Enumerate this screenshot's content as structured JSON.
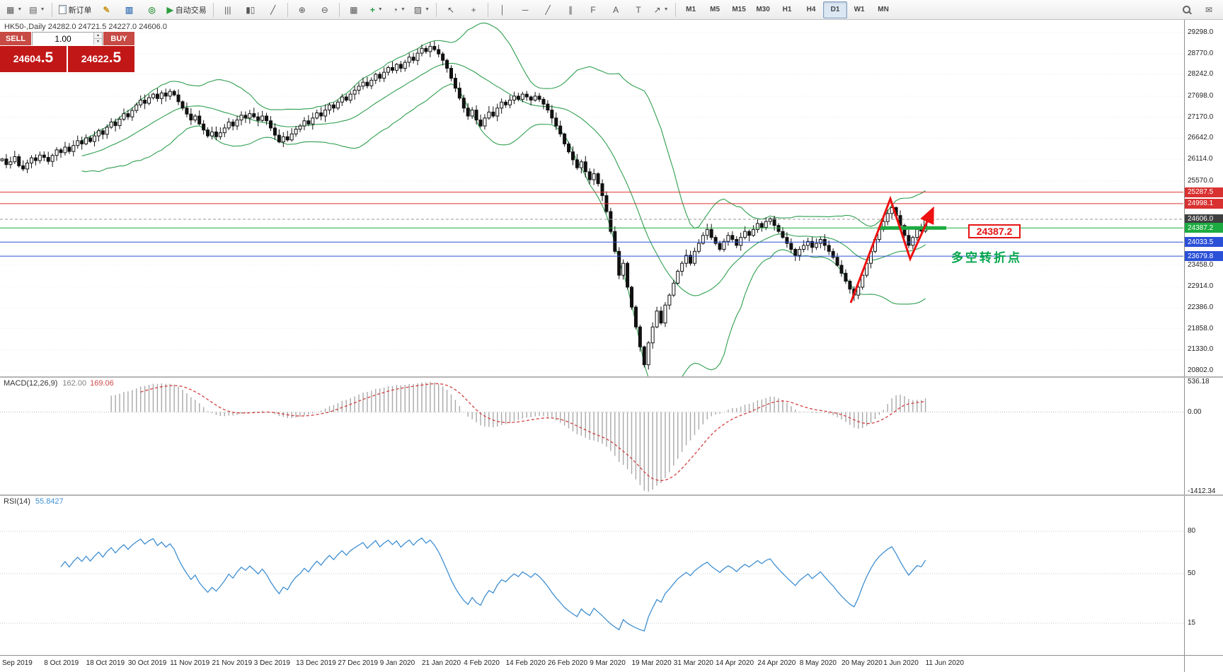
{
  "toolbar": {
    "groups": [
      {
        "items": [
          {
            "name": "new-chart-button",
            "glyph": "▦",
            "caret": true
          },
          {
            "name": "profiles-button",
            "glyph": "▤",
            "caret": true
          }
        ]
      },
      {
        "items": [
          {
            "name": "new-order-button",
            "type": "page",
            "label": "新订单"
          },
          {
            "name": "metaeditor-button",
            "glyph": "✎",
            "color": "#c8961e"
          },
          {
            "name": "terminal-button",
            "glyph": "▥",
            "color": "#4a7ebb"
          },
          {
            "name": "navigator-button",
            "glyph": "◎",
            "color": "#3f9d4c"
          },
          {
            "name": "autotrading-button",
            "glyph": "▶",
            "color": "#2e9e3e",
            "label": "自动交易"
          }
        ]
      },
      {
        "items": [
          {
            "name": "bar-chart-button",
            "glyph": "|||"
          },
          {
            "name": "candlestick-chart-button",
            "glyph": "▮▯"
          },
          {
            "name": "line-chart-button",
            "glyph": "╱"
          }
        ]
      },
      {
        "items": [
          {
            "name": "zoom-in-button",
            "glyph": "⊕"
          },
          {
            "name": "zoom-out-button",
            "glyph": "⊖"
          }
        ]
      },
      {
        "items": [
          {
            "name": "tile-windows-button",
            "glyph": "▦"
          },
          {
            "name": "indicators-button",
            "glyph": "+",
            "color": "#1f9d3f",
            "caret": true
          },
          {
            "name": "periods-button",
            "glyph": "◔",
            "caret": true
          },
          {
            "name": "templates-button",
            "glyph": "▨",
            "caret": true
          }
        ]
      },
      {
        "items": [
          {
            "name": "cursor-button",
            "glyph": "↖"
          },
          {
            "name": "crosshair-button",
            "glyph": "+"
          }
        ]
      },
      {
        "items": [
          {
            "name": "vertical-line-button",
            "glyph": "│"
          },
          {
            "name": "horizontal-line-button",
            "glyph": "─"
          },
          {
            "name": "trendline-button",
            "glyph": "╱"
          },
          {
            "name": "channel-button",
            "glyph": "∥"
          },
          {
            "name": "fibonacci-button",
            "glyph": "F"
          },
          {
            "name": "text-button",
            "glyph": "A"
          },
          {
            "name": "text-label-button",
            "glyph": "T"
          },
          {
            "name": "arrow-objects-button",
            "glyph": "↗",
            "caret": true
          }
        ]
      }
    ],
    "timeframes": [
      "M1",
      "M5",
      "M15",
      "M30",
      "H1",
      "H4",
      "D1",
      "W1",
      "MN"
    ],
    "active_timeframe": "D1",
    "right_icons": [
      {
        "name": "search-button",
        "type": "mag"
      },
      {
        "name": "chat-button",
        "glyph": "✉"
      }
    ]
  },
  "trade_panel": {
    "sell_label": "SELL",
    "buy_label": "BUY",
    "volume": "1.00",
    "sell_price_main": "24604",
    "sell_price_frac": ".5",
    "buy_price_main": "24622",
    "buy_price_frac": ".5"
  },
  "chart": {
    "info_line": "HK50-,Daily  24282.0 24721.5 24227.0 24606.0",
    "symbol": "HK50-",
    "period": "Daily",
    "annotation_price": "24387.2",
    "annotation_text": "多空转折点",
    "price_axis_labels": [
      "29298.0",
      "28770.0",
      "28242.0",
      "27698.0",
      "27170.0",
      "26642.0",
      "26114.0",
      "25570.0",
      "23458.0",
      "22914.0",
      "22386.0",
      "21858.0",
      "21330.0",
      "20802.0"
    ],
    "levels": [
      {
        "label": "25287.5",
        "kind": "resistance",
        "box": "#d93030",
        "line": "#e03232",
        "dash": false
      },
      {
        "label": "24998.1",
        "kind": "resistance",
        "box": "#d93030",
        "line": "#e03232",
        "dash": false
      },
      {
        "label": "24606.0",
        "kind": "current-price",
        "box": "#3f3f3f",
        "line": "#9a9a9a",
        "dash": true
      },
      {
        "label": "24387.2",
        "kind": "pivot",
        "box": "#1cab40",
        "line": "#1cab40",
        "dash": false
      },
      {
        "label": "24033.5",
        "kind": "support",
        "box": "#2b50d8",
        "line": "#2b50d8",
        "dash": false
      },
      {
        "label": "23679.8",
        "kind": "support",
        "box": "#2b50d8",
        "line": "#2b50d8",
        "dash": false
      }
    ],
    "date_labels": [
      "Sep 2019",
      "8 Oct 2019",
      "18 Oct 2019",
      "30 Oct 2019",
      "11 Nov 2019",
      "21 Nov 2019",
      "3 Dec 2019",
      "13 Dec 2019",
      "27 Dec 2019",
      "9 Jan 2020",
      "21 Jan 2020",
      "4 Feb 2020",
      "14 Feb 2020",
      "26 Feb 2020",
      "9 Mar 2020",
      "19 Mar 2020",
      "31 Mar 2020",
      "14 Apr 2020",
      "24 Apr 2020",
      "8 May 2020",
      "20 May 2020",
      "1 Jun 2020",
      "11 Jun 2020"
    ]
  },
  "chart_data": {
    "type": "candlestick",
    "symbol": "HK50-",
    "timeframe": "Daily",
    "ohlc_display": {
      "open": "24282.0",
      "high": "24721.5",
      "low": "24227.0",
      "close": "24606.0"
    },
    "price_axis": {
      "min": 20802.0,
      "max": 29298.0,
      "step": 528.0
    },
    "overlays": [
      "bollinger-bands"
    ],
    "levels": {
      "resistance": [
        25287.5,
        24998.1
      ],
      "current": 24606.0,
      "pivot": 24387.2,
      "support": [
        24033.5,
        23679.8
      ]
    },
    "closes": [
      26120,
      25980,
      26050,
      26180,
      25950,
      25870,
      26020,
      26150,
      26080,
      26220,
      26160,
      26060,
      26210,
      26350,
      26280,
      26420,
      26310,
      26460,
      26580,
      26500,
      26650,
      26560,
      26700,
      26830,
      26740,
      26920,
      27050,
      26960,
      27120,
      27260,
      27180,
      27340,
      27480,
      27600,
      27520,
      27660,
      27750,
      27640,
      27780,
      27700,
      27820,
      27730,
      27560,
      27400,
      27250,
      27100,
      27200,
      27000,
      26850,
      26700,
      26800,
      26680,
      26780,
      26900,
      27050,
      26950,
      27100,
      27220,
      27150,
      27260,
      27180,
      27090,
      27200,
      27080,
      26900,
      26720,
      26550,
      26680,
      26600,
      26750,
      26870,
      26950,
      27080,
      27000,
      27150,
      27280,
      27200,
      27350,
      27480,
      27400,
      27550,
      27680,
      27600,
      27750,
      27850,
      27950,
      28050,
      27960,
      28100,
      28250,
      28150,
      28300,
      28420,
      28350,
      28500,
      28400,
      28550,
      28680,
      28600,
      28780,
      28900,
      28820,
      28950,
      28870,
      28760,
      28600,
      28400,
      28150,
      27900,
      27650,
      27400,
      27200,
      27350,
      27100,
      26950,
      27150,
      27300,
      27200,
      27400,
      27550,
      27480,
      27600,
      27700,
      27620,
      27750,
      27680,
      27600,
      27700,
      27620,
      27500,
      27350,
      27150,
      26950,
      26750,
      26500,
      26300,
      26100,
      25900,
      26050,
      25800,
      25600,
      25750,
      25500,
      25200,
      24800,
      24300,
      23800,
      23200,
      23500,
      22900,
      22400,
      21900,
      21400,
      20950,
      21500,
      21900,
      22300,
      22000,
      22450,
      22700,
      23000,
      23300,
      23500,
      23700,
      23500,
      23800,
      24000,
      24200,
      24350,
      24150,
      24000,
      23850,
      24050,
      24200,
      24100,
      23950,
      24150,
      24300,
      24200,
      24350,
      24500,
      24400,
      24550,
      24620,
      24450,
      24300,
      24150,
      24000,
      23850,
      23700,
      23850,
      23950,
      24050,
      23900,
      24000,
      24100,
      23950,
      23800,
      23650,
      23450,
      23250,
      23050,
      22850,
      22700,
      22900,
      23200,
      23500,
      23800,
      24100,
      24350,
      24550,
      24750,
      24900,
      24700,
      24450,
      24200,
      23950,
      24150,
      24350,
      24310,
      24606
    ],
    "macd": {
      "name": "MACD(12,26,9)",
      "value_main": "162.00",
      "value_signal": "169.06",
      "axis_labels": [
        "536.18",
        "0.00",
        "-1412.34"
      ]
    },
    "rsi": {
      "name": "RSI(14)",
      "value": "55.8427",
      "axis_labels": [
        "80",
        "50",
        "15"
      ],
      "levels": [
        80,
        50,
        15
      ]
    }
  },
  "colors": {
    "up_candle": "#ffffff",
    "down_candle": "#111111",
    "bollinger": "#2f9e4f",
    "macd_histogram": "#a8a8a8",
    "macd_signal": "#d23f3f",
    "rsi_line": "#3f8fd2",
    "annotation_red": "#ee1111",
    "annotation_green": "#00a54a",
    "pivot": "#1cab40",
    "panel_red": "#c21717"
  }
}
